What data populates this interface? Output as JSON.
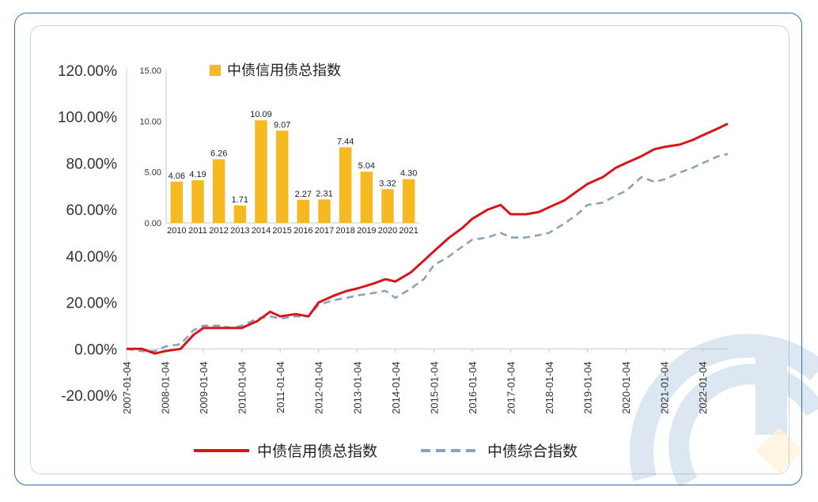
{
  "chart_data": [
    {
      "type": "line",
      "title": "",
      "xlabel": "",
      "ylabel": "",
      "ylim": [
        -20,
        120
      ],
      "y_ticks": [
        "120.00%",
        "100.00%",
        "80.00%",
        "60.00%",
        "40.00%",
        "20.00%",
        "0.00%",
        "-20.00%"
      ],
      "y_tick_values": [
        120,
        100,
        80,
        60,
        40,
        20,
        0,
        -20
      ],
      "x_ticks": [
        "2007-01-04",
        "2008-01-04",
        "2009-01-04",
        "2010-01-04",
        "2011-01-04",
        "2012-01-04",
        "2013-01-04",
        "2014-01-04",
        "2015-01-04",
        "2016-01-04",
        "2017-01-04",
        "2018-01-04",
        "2019-01-04",
        "2020-01-04",
        "2021-01-04",
        "2022-01-04"
      ],
      "legend_position": "bottom",
      "grid": false,
      "series": [
        {
          "name": "中债信用债总指数",
          "color": "#d7151c",
          "style": "solid",
          "x": [
            "2007-01-04",
            "2007-06-01",
            "2007-10-01",
            "2008-01-04",
            "2008-06-01",
            "2008-10-01",
            "2009-01-04",
            "2009-06-01",
            "2009-10-01",
            "2010-01-04",
            "2010-06-01",
            "2010-10-01",
            "2011-01-04",
            "2011-06-01",
            "2011-10-01",
            "2012-01-04",
            "2012-06-01",
            "2012-10-01",
            "2013-01-04",
            "2013-06-01",
            "2013-10-01",
            "2014-01-04",
            "2014-06-01",
            "2014-10-01",
            "2015-01-04",
            "2015-06-01",
            "2015-10-01",
            "2016-01-04",
            "2016-06-01",
            "2016-10-01",
            "2017-01-04",
            "2017-06-01",
            "2017-10-01",
            "2018-01-04",
            "2018-06-01",
            "2018-10-01",
            "2019-01-04",
            "2019-06-01",
            "2019-10-01",
            "2020-01-04",
            "2020-06-01",
            "2020-10-01",
            "2021-01-04",
            "2021-06-01",
            "2021-10-01",
            "2022-01-04",
            "2022-06-01",
            "2022-09-01"
          ],
          "values": [
            0,
            0,
            -2,
            -1,
            0,
            6,
            9,
            9,
            9,
            9,
            12,
            16,
            14,
            15,
            14,
            20,
            23,
            25,
            26,
            28,
            30,
            29,
            33,
            38,
            42,
            48,
            52,
            56,
            60,
            62,
            58,
            58,
            59,
            61,
            64,
            68,
            71,
            74,
            78,
            80,
            83,
            86,
            87,
            88,
            90,
            92,
            95,
            97
          ]
        },
        {
          "name": "中债综合指数",
          "color": "#8aa2bb",
          "style": "dashed",
          "x": [
            "2007-01-04",
            "2007-06-01",
            "2007-10-01",
            "2008-01-04",
            "2008-06-01",
            "2008-10-01",
            "2009-01-04",
            "2009-06-01",
            "2009-10-01",
            "2010-01-04",
            "2010-06-01",
            "2010-10-01",
            "2011-01-04",
            "2011-06-01",
            "2011-10-01",
            "2012-01-04",
            "2012-06-01",
            "2012-10-01",
            "2013-01-04",
            "2013-06-01",
            "2013-10-01",
            "2014-01-04",
            "2014-06-01",
            "2014-10-01",
            "2015-01-04",
            "2015-06-01",
            "2015-10-01",
            "2016-01-04",
            "2016-06-01",
            "2016-10-01",
            "2017-01-04",
            "2017-06-01",
            "2017-10-01",
            "2018-01-04",
            "2018-06-01",
            "2018-10-01",
            "2019-01-04",
            "2019-06-01",
            "2019-10-01",
            "2020-01-04",
            "2020-06-01",
            "2020-10-01",
            "2021-01-04",
            "2021-06-01",
            "2021-10-01",
            "2022-01-04",
            "2022-06-01",
            "2022-09-01"
          ],
          "values": [
            0,
            -1,
            -1,
            1,
            2,
            8,
            10,
            10,
            9,
            10,
            13,
            14,
            13,
            14,
            14,
            19,
            21,
            22,
            23,
            24,
            25,
            22,
            26,
            30,
            36,
            40,
            44,
            47,
            48,
            50,
            48,
            48,
            49,
            50,
            54,
            58,
            62,
            63,
            66,
            68,
            74,
            72,
            73,
            76,
            78,
            80,
            83,
            84
          ]
        }
      ]
    },
    {
      "type": "bar",
      "title": "",
      "legend": "中债信用债总指数",
      "color": "#f6b91f",
      "ylim": [
        0,
        15
      ],
      "y_ticks": [
        "15.00",
        "10.00",
        "5.00",
        "0.00"
      ],
      "y_tick_values": [
        15,
        10,
        5,
        0
      ],
      "categories": [
        "2010",
        "2011",
        "2012",
        "2013",
        "2014",
        "2015",
        "2016",
        "2017",
        "2018",
        "2019",
        "2020",
        "2021"
      ],
      "values": [
        4.06,
        4.19,
        6.26,
        1.71,
        10.09,
        9.07,
        2.27,
        2.31,
        7.44,
        5.04,
        3.32,
        4.3
      ],
      "value_labels": [
        "4.06",
        "4.19",
        "6.26",
        "1.71",
        "10.09",
        "9.07",
        "2.27",
        "2.31",
        "7.44",
        "5.04",
        "3.32",
        "4.30"
      ]
    }
  ]
}
